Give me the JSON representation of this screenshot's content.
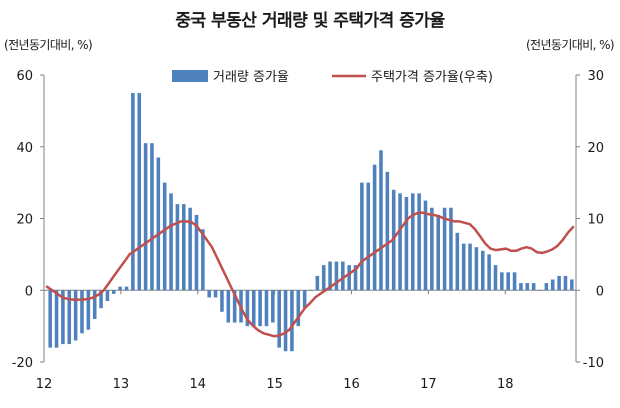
{
  "title": "중국 부동산 거래량 및 주택가격 증가율",
  "unit_left": "(전년동기대비, %)",
  "unit_right": "(전년동기대비, %)",
  "chart_data": {
    "type": "bar",
    "title": "중국 부동산 거래량 및 주택가격 증가율",
    "x_tick_labels": [
      "12",
      "13",
      "14",
      "15",
      "16",
      "17",
      "18"
    ],
    "y_left": {
      "label": "(전년동기대비, %)",
      "lim": [
        -20,
        60
      ],
      "ticks": [
        -20,
        0,
        20,
        40,
        60
      ]
    },
    "y_right": {
      "label": "(전년동기대비, %)",
      "lim": [
        -10,
        30
      ],
      "ticks": [
        -10,
        0,
        10,
        20,
        30
      ]
    },
    "grid": false,
    "legend_position": "top",
    "series": [
      {
        "name": "거래량 증가율",
        "type": "bar",
        "axis": "left",
        "color": "#4f81bd",
        "values": [
          -16,
          -16,
          -15,
          -15,
          -14,
          -12,
          -11,
          -8,
          -5,
          -3,
          -1,
          1,
          1,
          55,
          55,
          41,
          41,
          37,
          30,
          27,
          24,
          24,
          23,
          21,
          17,
          -2,
          -2,
          -6,
          -9,
          -9,
          -9,
          -10,
          -10,
          -10,
          -10,
          -9,
          -16,
          -17,
          -17,
          -10,
          -5,
          0,
          4,
          7,
          8,
          8,
          8,
          7,
          7,
          30,
          30,
          35,
          39,
          33,
          28,
          27,
          26,
          27,
          27,
          25,
          23,
          21,
          23,
          23,
          16,
          13,
          13,
          12,
          11,
          10,
          7,
          5,
          5,
          5,
          2,
          2,
          2,
          0,
          2,
          3,
          4,
          4,
          3
        ]
      },
      {
        "name": "주택가격 증가율(우축)",
        "type": "line",
        "axis": "right",
        "color": "#c0504d",
        "values": [
          0.5,
          0,
          -0.5,
          -1,
          -1.2,
          -1.3,
          -1.3,
          -1.3,
          -1.2,
          -1,
          -0.6,
          0,
          1,
          2,
          3,
          4,
          5,
          5.5,
          6,
          6.5,
          7,
          7.5,
          8,
          8.5,
          9,
          9.3,
          9.6,
          9.6,
          9.5,
          9,
          8,
          7,
          6,
          4.5,
          3,
          1.5,
          0,
          -1.5,
          -3,
          -4.2,
          -5,
          -5.6,
          -6,
          -6.2,
          -6.4,
          -6.3,
          -6,
          -5.5,
          -4.5,
          -3.5,
          -2.5,
          -1.8,
          -1,
          -0.5,
          0,
          0.5,
          1,
          1.5,
          2,
          2.5,
          3,
          4,
          4.5,
          5,
          5.5,
          6,
          6.5,
          7,
          8,
          9,
          10,
          10.5,
          10.8,
          10.8,
          10.6,
          10.5,
          10.3,
          10,
          9.8,
          9.6,
          9.6,
          9.4,
          9.2,
          8.5,
          7.5,
          6.5,
          5.8,
          5.6,
          5.7,
          5.8,
          5.5,
          5.5,
          5.8,
          6,
          5.8,
          5.3,
          5.2,
          5.4,
          5.7,
          6.2,
          7,
          8,
          8.8
        ]
      }
    ]
  }
}
